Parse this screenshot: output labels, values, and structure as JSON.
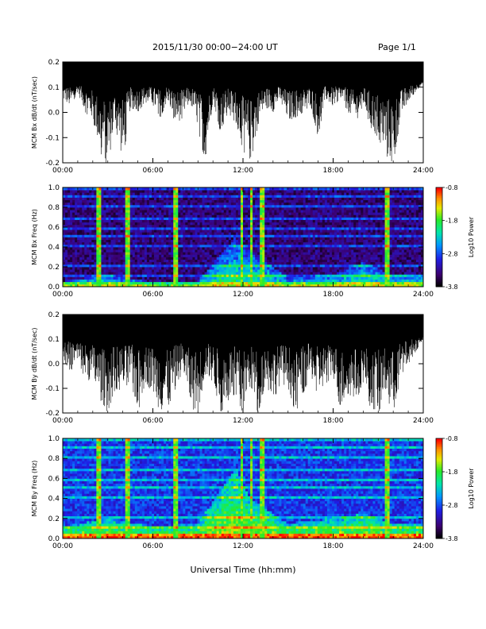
{
  "header": {
    "title": "2015/11/30  00:00−24:00 UT",
    "page": "Page 1/1"
  },
  "x_axis_title": "Universal Time (hh:mm)",
  "chart_data": [
    {
      "type": "line",
      "ylabel": "MCM Bx dB/dt (nT/sec)",
      "xlim": [
        "00:00",
        "24:00"
      ],
      "ylim": [
        -0.2,
        0.2
      ],
      "x_ticks": [
        "00:00",
        "06:00",
        "12:00",
        "18:00",
        "24:00"
      ],
      "y_ticks": [
        "0.2",
        "0.1",
        "0.0",
        "-0.1",
        "-0.2"
      ],
      "series": [
        {
          "x_hours": [
            0,
            0.5,
            1,
            1.5,
            2,
            2.5,
            3,
            3.5,
            4,
            4.5,
            5,
            5.5,
            6,
            6.5,
            7,
            7.5,
            8,
            8.5,
            9,
            9.5,
            10,
            10.5,
            11,
            11.5,
            12,
            12.5,
            13,
            13.5,
            14,
            14.5,
            15,
            15.5,
            16,
            16.5,
            17,
            17.5,
            18,
            18.5,
            19,
            19.5,
            20,
            20.5,
            21,
            21.5,
            22,
            22.5,
            23,
            23.5,
            24
          ],
          "min_envelope": [
            0.05,
            0.02,
            0.08,
            0.0,
            -0.03,
            -0.16,
            -0.21,
            -0.05,
            -0.2,
            0.02,
            0.0,
            0.04,
            0.03,
            -0.02,
            0.05,
            -0.05,
            -0.02,
            0.04,
            -0.06,
            -0.2,
            0.05,
            -0.08,
            0.0,
            -0.04,
            -0.15,
            -0.2,
            -0.05,
            0.02,
            0.0,
            0.05,
            -0.04,
            -0.02,
            0.0,
            0.03,
            -0.1,
            0.05,
            0.02,
            0.06,
            0.0,
            -0.04,
            0.03,
            -0.06,
            -0.1,
            -0.17,
            -0.2,
            -0.03,
            0.05,
            0.08,
            0.12
          ],
          "max_envelope": [
            0.2,
            0.2,
            0.2,
            0.2,
            0.2,
            0.2,
            0.2,
            0.2,
            0.2,
            0.2,
            0.2,
            0.2,
            0.2,
            0.2,
            0.2,
            0.2,
            0.2,
            0.2,
            0.2,
            0.2,
            0.2,
            0.2,
            0.2,
            0.2,
            0.2,
            0.2,
            0.2,
            0.2,
            0.2,
            0.2,
            0.2,
            0.2,
            0.2,
            0.2,
            0.2,
            0.2,
            0.2,
            0.2,
            0.2,
            0.2,
            0.2,
            0.2,
            0.2,
            0.2,
            0.2,
            0.2,
            0.2,
            0.2,
            0.2
          ]
        }
      ]
    },
    {
      "type": "heatmap",
      "ylabel": "MCM Bx Freq (Hz)",
      "xlim": [
        "00:00",
        "24:00"
      ],
      "ylim": [
        0.0,
        1.0
      ],
      "x_ticks": [
        "00:00",
        "06:00",
        "12:00",
        "18:00",
        "24:00"
      ],
      "y_ticks": [
        "1.0",
        "0.8",
        "0.6",
        "0.4",
        "0.2",
        "0.0"
      ],
      "colorbar": {
        "label": "Log10 Power",
        "ticks": [
          "-0.8",
          "-1.8",
          "-2.8",
          "-3.8"
        ],
        "range": [
          -3.8,
          -0.8
        ]
      },
      "background_level": -3.4,
      "broadband_events_hours": [
        2.4,
        4.3,
        7.5,
        11.9,
        12.6,
        13.3,
        21.6
      ],
      "low_freq_activity": [
        {
          "x_hours": [
            0,
            3,
            6,
            9,
            11.5,
            12.5,
            15,
            18,
            20,
            22,
            24
          ],
          "top_freq": [
            0.06,
            0.12,
            0.05,
            0.06,
            0.5,
            0.35,
            0.1,
            0.12,
            0.25,
            0.12,
            0.12
          ]
        }
      ],
      "harmonic_lines_hz": [
        0.1,
        0.2,
        0.3,
        0.4,
        0.5,
        0.6,
        0.7,
        0.8,
        0.9,
        1.0
      ]
    },
    {
      "type": "line",
      "ylabel": "MCM By dB/dt (nT/sec)",
      "xlim": [
        "00:00",
        "24:00"
      ],
      "ylim": [
        -0.2,
        0.2
      ],
      "x_ticks": [
        "00:00",
        "06:00",
        "12:00",
        "18:00",
        "24:00"
      ],
      "y_ticks": [
        "0.2",
        "0.1",
        "0.0",
        "-0.1",
        "-0.2"
      ],
      "series": [
        {
          "x_hours": [
            0,
            0.5,
            1,
            1.5,
            2,
            2.5,
            3,
            3.5,
            4,
            4.5,
            5,
            5.5,
            6,
            6.5,
            7,
            7.5,
            8,
            8.5,
            9,
            9.5,
            10,
            10.5,
            11,
            11.5,
            12,
            12.5,
            13,
            13.5,
            14,
            14.5,
            15,
            15.5,
            16,
            16.5,
            17,
            17.5,
            18,
            18.5,
            19,
            19.5,
            20,
            20.5,
            21,
            21.5,
            22,
            22.5,
            23,
            23.5,
            24
          ],
          "min_envelope": [
            0.02,
            -0.03,
            0.0,
            -0.06,
            -0.08,
            -0.15,
            -0.2,
            -0.1,
            -0.12,
            -0.06,
            -0.2,
            -0.08,
            -0.12,
            -0.2,
            -0.2,
            -0.1,
            -0.03,
            -0.18,
            -0.2,
            -0.05,
            -0.08,
            -0.2,
            -0.15,
            -0.12,
            -0.2,
            -0.1,
            -0.2,
            -0.08,
            -0.15,
            -0.08,
            -0.1,
            -0.2,
            -0.12,
            -0.05,
            -0.13,
            -0.08,
            -0.05,
            -0.2,
            -0.12,
            -0.15,
            -0.08,
            -0.18,
            -0.2,
            -0.13,
            -0.2,
            -0.05,
            0.0,
            0.05,
            0.1
          ],
          "max_envelope": [
            0.2,
            0.2,
            0.2,
            0.2,
            0.2,
            0.2,
            0.2,
            0.2,
            0.2,
            0.2,
            0.2,
            0.2,
            0.2,
            0.2,
            0.2,
            0.2,
            0.2,
            0.2,
            0.2,
            0.2,
            0.2,
            0.2,
            0.2,
            0.2,
            0.2,
            0.2,
            0.2,
            0.2,
            0.2,
            0.2,
            0.2,
            0.2,
            0.2,
            0.2,
            0.2,
            0.2,
            0.2,
            0.2,
            0.2,
            0.2,
            0.2,
            0.2,
            0.2,
            0.2,
            0.2,
            0.2,
            0.2,
            0.2,
            0.2
          ]
        }
      ]
    },
    {
      "type": "heatmap",
      "ylabel": "MCM By Freq (Hz)",
      "xlim": [
        "00:00",
        "24:00"
      ],
      "ylim": [
        0.0,
        1.0
      ],
      "x_ticks": [
        "00:00",
        "06:00",
        "12:00",
        "18:00",
        "24:00"
      ],
      "y_ticks": [
        "1.0",
        "0.8",
        "0.6",
        "0.4",
        "0.2",
        "0.0"
      ],
      "colorbar": {
        "label": "Log10 Power",
        "ticks": [
          "-0.8",
          "-1.8",
          "-2.8",
          "-3.8"
        ],
        "range": [
          -3.8,
          -0.8
        ]
      },
      "background_level": -2.9,
      "broadband_events_hours": [
        2.4,
        4.3,
        7.5,
        11.9,
        12.6,
        13.3,
        21.6
      ],
      "low_freq_activity": [
        {
          "x_hours": [
            0,
            3,
            6,
            9,
            11.5,
            12.5,
            15,
            18,
            20,
            22,
            24
          ],
          "top_freq": [
            0.12,
            0.2,
            0.12,
            0.15,
            0.7,
            0.4,
            0.15,
            0.2,
            0.25,
            0.15,
            0.15
          ]
        }
      ],
      "harmonic_lines_hz": [
        0.1,
        0.2,
        0.3,
        0.4,
        0.5,
        0.6,
        0.7,
        0.8,
        0.9,
        1.0
      ]
    }
  ]
}
